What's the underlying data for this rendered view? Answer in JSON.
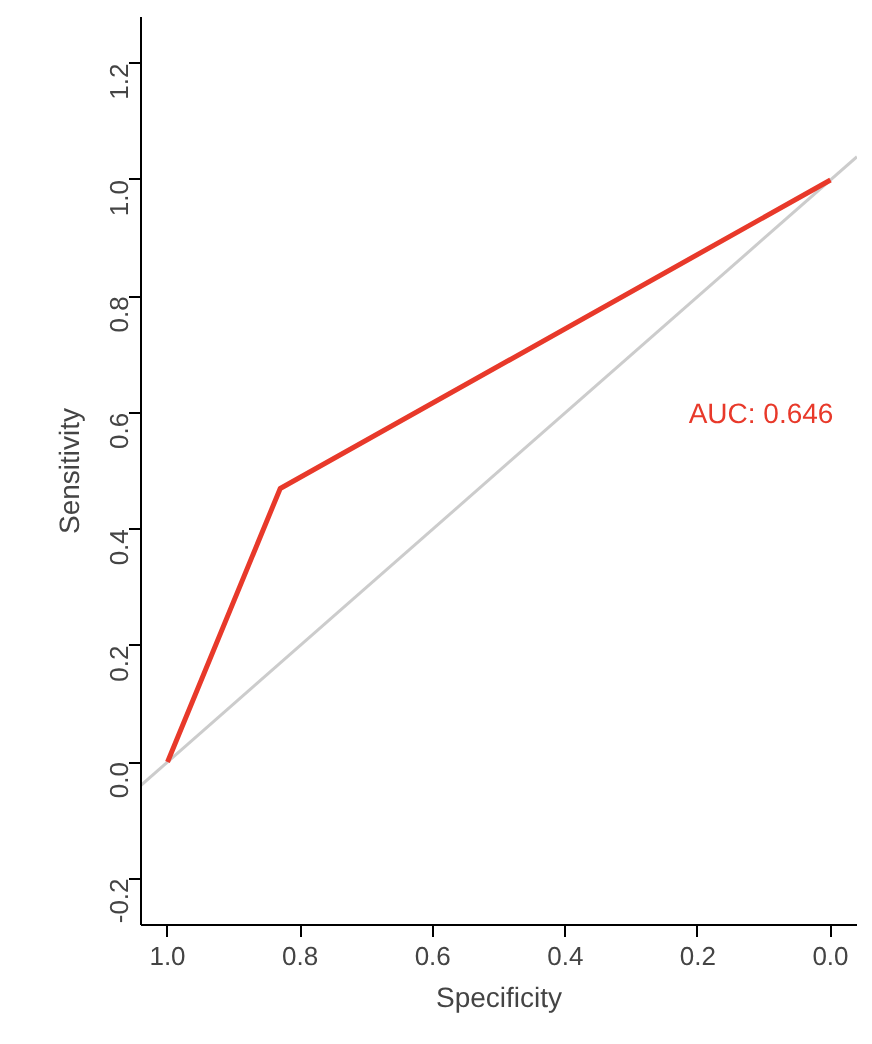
{
  "chart_data": {
    "type": "line",
    "xlabel": "Specificity",
    "ylabel": "Sensitivity",
    "xlim": [
      1.04,
      -0.04
    ],
    "ylim": [
      -0.28,
      1.28
    ],
    "xticks": [
      {
        "value": 1.0,
        "label": "1.0"
      },
      {
        "value": 0.8,
        "label": "0.8"
      },
      {
        "value": 0.6,
        "label": "0.6"
      },
      {
        "value": 0.4,
        "label": "0.4"
      },
      {
        "value": 0.2,
        "label": "0.2"
      },
      {
        "value": 0.0,
        "label": "0.0"
      }
    ],
    "yticks": [
      {
        "value": -0.2,
        "label": "-0.2"
      },
      {
        "value": 0.0,
        "label": "0.0"
      },
      {
        "value": 0.2,
        "label": "0.2"
      },
      {
        "value": 0.4,
        "label": "0.4"
      },
      {
        "value": 0.6,
        "label": "0.6"
      },
      {
        "value": 0.8,
        "label": "0.8"
      },
      {
        "value": 1.0,
        "label": "1.0"
      },
      {
        "value": 1.2,
        "label": "1.2"
      }
    ],
    "series": [
      {
        "color": "#cccccc",
        "x": [
          1.04,
          -0.04
        ],
        "values": [
          -0.04,
          1.04
        ]
      },
      {
        "color": "#e8392a",
        "x": [
          1.0,
          0.83,
          0.0
        ],
        "values": [
          0.0,
          0.47,
          1.0
        ]
      }
    ],
    "annotations": [
      "AUC: 0.646"
    ],
    "grid": false
  }
}
